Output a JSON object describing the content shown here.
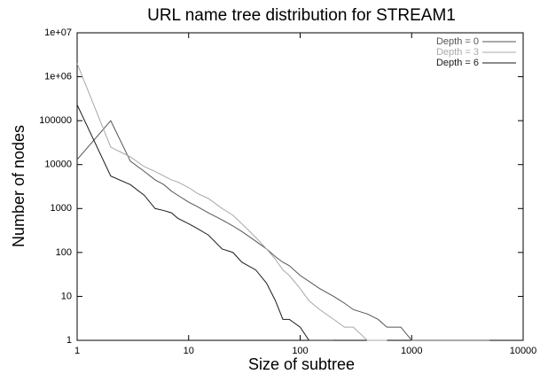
{
  "chart_data": {
    "type": "line",
    "title": "URL name tree distribution for STREAM1",
    "xlabel": "Size of subtree",
    "ylabel": "Number of nodes",
    "xscale": "log",
    "yscale": "log",
    "grid": false,
    "legend": "upper right",
    "xlim": [
      1,
      10000
    ],
    "ylim": [
      1,
      10000000
    ],
    "xticks": [
      1,
      10,
      100,
      1000,
      10000
    ],
    "yticks": [
      1,
      10,
      100,
      1000,
      10000,
      100000,
      {
        "value": 1000000,
        "label": "1e+06"
      },
      {
        "value": 10000000,
        "label": "1e+07"
      }
    ],
    "x": [
      1,
      2,
      3,
      4,
      5,
      6,
      7,
      8,
      10,
      12,
      15,
      20,
      25,
      30,
      40,
      50,
      60,
      70,
      80,
      100,
      120,
      150,
      200,
      250,
      300,
      400,
      500,
      600,
      800,
      1000,
      1500,
      2000,
      3000,
      5000
    ],
    "series": [
      {
        "name": "Depth = 0",
        "color": "#555555",
        "values": [
          13000,
          100000,
          12000,
          7000,
          4500,
          3500,
          2500,
          2000,
          1400,
          1100,
          800,
          550,
          400,
          300,
          180,
          120,
          80,
          60,
          50,
          30,
          22,
          15,
          10,
          7,
          5,
          4,
          3,
          2,
          2,
          1,
          1,
          1,
          1,
          1
        ]
      },
      {
        "name": "Depth = 3",
        "color": "#a8a8a8",
        "values": [
          2000000,
          25000,
          15000,
          9000,
          7000,
          5500,
          4500,
          4000,
          3000,
          2200,
          1700,
          1000,
          700,
          450,
          220,
          120,
          70,
          40,
          30,
          15,
          8,
          5,
          3,
          2,
          2,
          1,
          1,
          1,
          null,
          null,
          null,
          null,
          null,
          null
        ]
      },
      {
        "name": "Depth = 6",
        "color": "#1a1a1a",
        "values": [
          230000,
          5500,
          3500,
          2000,
          1000,
          900,
          800,
          600,
          450,
          350,
          250,
          120,
          100,
          60,
          40,
          20,
          8,
          3,
          3,
          2,
          1,
          1,
          1,
          null,
          null,
          null,
          null,
          null,
          null,
          null,
          null,
          null,
          null,
          null
        ]
      }
    ]
  }
}
